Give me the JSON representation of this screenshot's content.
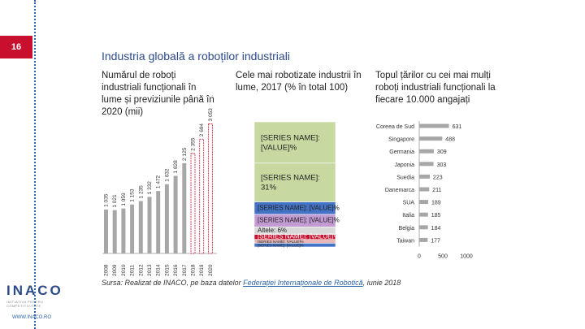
{
  "page": {
    "number": "16",
    "title": "Industria globală a roboților industriali"
  },
  "source": {
    "prefix": "Sursa: Realizat de INACO, pe baza datelor ",
    "link": "Federației Internaționale de Robotică",
    "suffix": ", iunie 2018"
  },
  "logo": {
    "name": "INACO",
    "tagline": "INITIATIVA PENTRU COMPETITIVITATE",
    "url": "WWW.INACO.RO"
  },
  "colors": {
    "accent_red": "#c8102e",
    "title_blue": "#2c4a8a",
    "bar_grey": "#a7a7a7",
    "bar_green": "#c7d9a1",
    "bar_blue": "#4472c4",
    "bar_pink": "#e7b7b7"
  },
  "chart_data": [
    {
      "type": "bar",
      "title": "Numărul de roboți industriali funcționali în lume și previziunile până în 2020 (mii)",
      "categories": [
        "2008",
        "2009",
        "2010",
        "2011",
        "2012",
        "2013",
        "2014",
        "2015",
        "2016",
        "2017",
        "2018",
        "2019",
        "2020"
      ],
      "values": [
        1035,
        1021,
        1059,
        1153,
        1235,
        1332,
        1472,
        1632,
        1828,
        2125,
        2355,
        2694,
        3053
      ],
      "value_labels": [
        "1 035",
        "1 021",
        "1 059",
        "1 153",
        "1 235",
        "1 332",
        "1 472",
        "1 632",
        "1 828",
        "2 125",
        "2 355",
        "2 694",
        "3 053"
      ],
      "ylim": [
        0,
        3100
      ],
      "forecast_from": "2018"
    },
    {
      "type": "bar",
      "subtype": "stacked-100",
      "title": "Cele mai robotizate industrii în lume, 2017 (% în total 100)",
      "series": [
        {
          "name": "[SERIES NAME]:",
          "label": "[VALUE]%",
          "value": 33
        },
        {
          "name": "[SERIES NAME]:",
          "label": "31%",
          "value": 31
        },
        {
          "name": "[SERIES NAME]:",
          "label": "[VALUE]%",
          "value": 10
        },
        {
          "name": "[SERIES NAME]:",
          "label": "[VALUE]%",
          "value": 10
        },
        {
          "name": "Altele:",
          "label": "6%",
          "value": 6
        },
        {
          "name": "[SERIES NAME]:",
          "label": "[VALUE]%",
          "value": 4
        },
        {
          "name": "[SERIES NAME]:",
          "label": "[VALUE]%",
          "value": 3
        },
        {
          "name": "[SERIES NAME]:",
          "label": "[VALUE]%",
          "value": 3
        }
      ]
    },
    {
      "type": "bar",
      "orientation": "horizontal",
      "title": "Topul țărilor cu cei mai mulți roboți industriali funcționali la fiecare 10.000 angajați",
      "categories": [
        "Coreea de Sud",
        "Singapore",
        "Germania",
        "Japonia",
        "Suedia",
        "Danemarca",
        "SUA",
        "Italia",
        "Belgia",
        "Taiwan"
      ],
      "values": [
        631,
        488,
        309,
        303,
        223,
        211,
        189,
        185,
        184,
        177
      ],
      "xticks": [
        "0",
        "500",
        "1000"
      ],
      "xlim": [
        0,
        1000
      ]
    }
  ]
}
